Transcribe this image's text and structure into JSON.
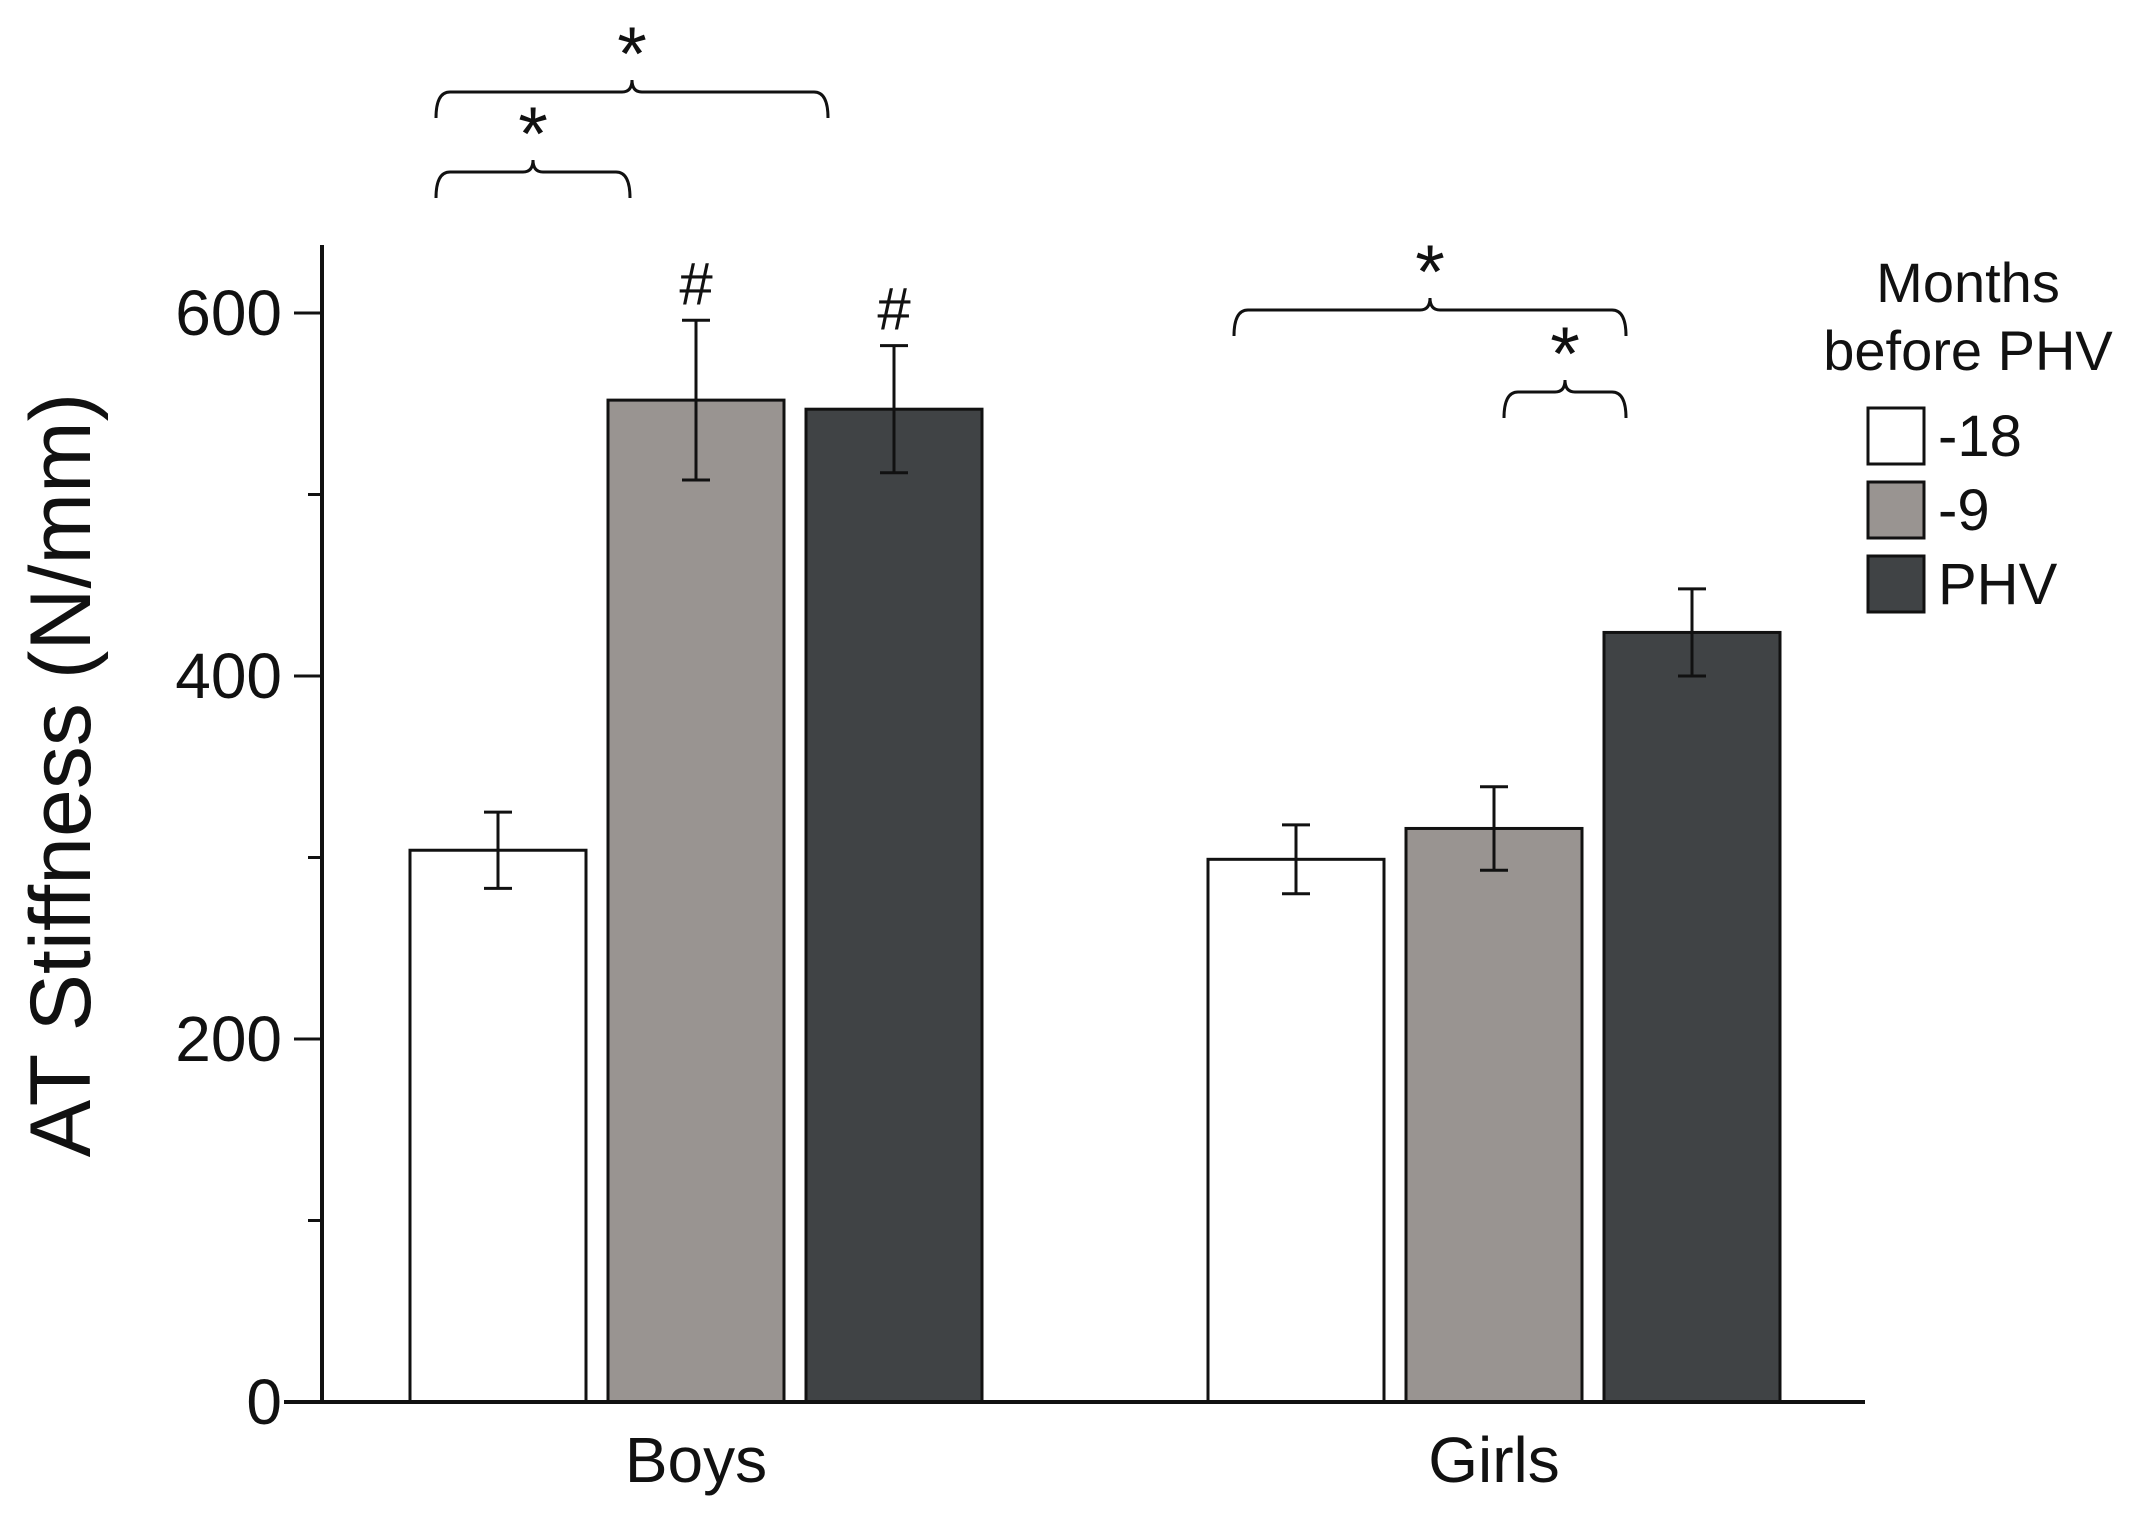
{
  "chart_data": {
    "type": "bar",
    "categories": [
      "Boys",
      "Girls"
    ],
    "ylabel": "AT Stiffness (N/mm)",
    "ylim": [
      0,
      640
    ],
    "yticks": [
      0,
      200,
      400,
      600
    ],
    "grid": false,
    "legend": {
      "title_lines": [
        "Months",
        "before PHV"
      ],
      "placement": "right"
    },
    "series": [
      {
        "name": "-18",
        "color": "#ffffff",
        "values": [
          304,
          299
        ],
        "error": [
          21,
          19
        ]
      },
      {
        "name": "-9",
        "color": "#999491",
        "values": [
          552,
          316
        ],
        "error": [
          44,
          23
        ]
      },
      {
        "name": "PHV",
        "color": "#404345",
        "values": [
          547,
          424
        ],
        "error": [
          35,
          24
        ]
      }
    ],
    "markers": [
      {
        "text": "#",
        "category": 0,
        "series": 1
      },
      {
        "text": "#",
        "category": 0,
        "series": 2
      }
    ],
    "brackets": [
      {
        "category": 0,
        "from_series": 0,
        "to_series": 1,
        "level": 0,
        "text": "*"
      },
      {
        "category": 0,
        "from_series": 0,
        "to_series": 2,
        "level": 1,
        "text": "*"
      },
      {
        "category": 1,
        "from_series": 1,
        "to_series": 2,
        "level": 0,
        "text": "*"
      },
      {
        "category": 1,
        "from_series": 0,
        "to_series": 2,
        "level": 1,
        "text": "*"
      }
    ]
  }
}
